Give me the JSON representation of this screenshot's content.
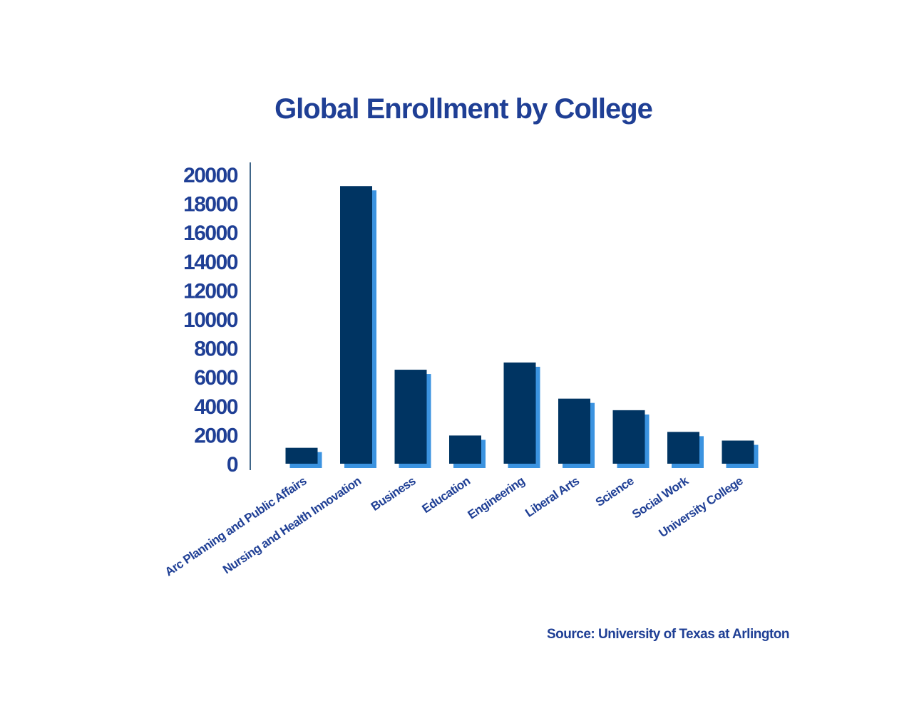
{
  "colors": {
    "bar": "#003462",
    "bar_shadow": "#3b93e0",
    "text": "#1f3f95",
    "axis": "#003462"
  },
  "chart_data": {
    "type": "bar",
    "title": "Global Enrollment by College",
    "source": "Source: University of Texas at Arlington",
    "categories": [
      "Arc Planning and Public Affairs",
      "Nursing and Health Innovation",
      "Business",
      "Education",
      "Engineering",
      "Liberal Arts",
      "Science",
      "Social Work",
      "University College"
    ],
    "values": [
      1100,
      19200,
      6500,
      1950,
      7000,
      4500,
      3700,
      2200,
      1600
    ],
    "ylim": [
      0,
      20000
    ],
    "yticks": [
      "0",
      "2000",
      "4000",
      "6000",
      "8000",
      "10000",
      "12000",
      "14000",
      "16000",
      "18000",
      "20000"
    ],
    "grid": false,
    "legend": "none"
  }
}
